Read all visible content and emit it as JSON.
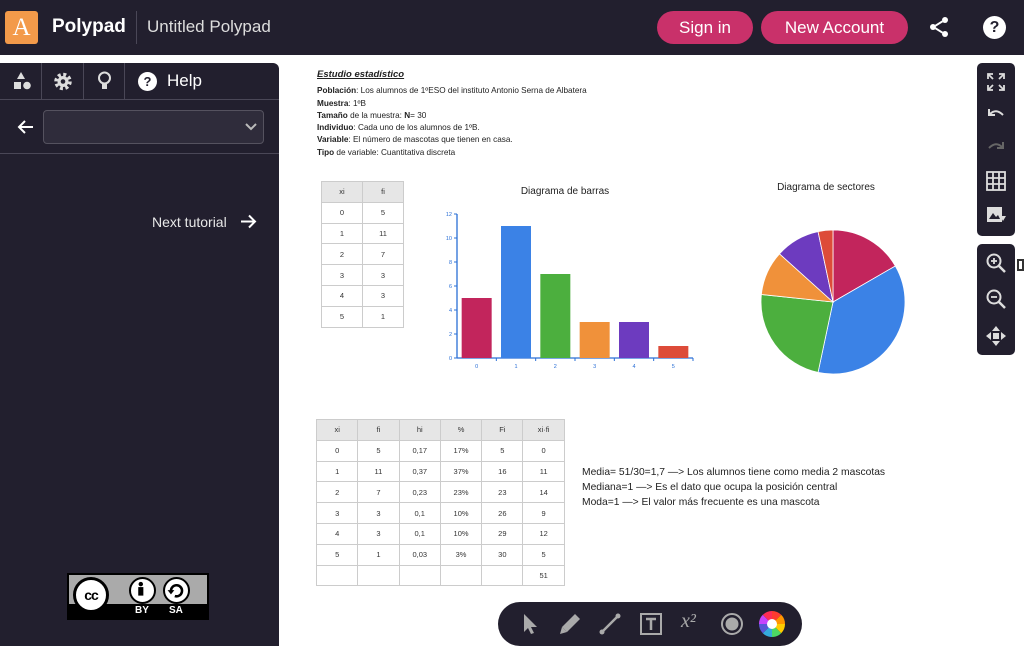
{
  "header": {
    "logo_letter": "A",
    "app_name": "Polypad",
    "file_title": "Untitled Polypad",
    "signin_label": "Sign in",
    "new_account_label": "New Account",
    "help_glyph": "?"
  },
  "sidebar": {
    "tabs": [
      "shapes-icon",
      "gear-icon",
      "lightbulb-icon"
    ],
    "help_glyph": "?",
    "help_label": "Help",
    "tutorial_select_value": "",
    "next_tutorial_label": "Next tutorial",
    "license": {
      "cc": "cc",
      "by": "BY",
      "sa": "SA"
    }
  },
  "document": {
    "title": "Estudio estadístico",
    "rows": [
      {
        "label": "Población",
        "text": ": Los alumnos de 1ºESO del instituto Antonio Serna de Albatera"
      },
      {
        "label": "Muestra",
        "text": ": 1ºB"
      },
      {
        "label": "Tamaño",
        "text": " de la muestra: ",
        "label2": "N",
        "text2": "= 30"
      },
      {
        "label": "Individuo",
        "text": ": Cada uno de los alumnos de 1ºB."
      },
      {
        "label": "Variable",
        "text": ": El número de mascotas que tienen en casa."
      },
      {
        "label": "Tipo",
        "text": " de variable: Cuantitativa discreta"
      }
    ]
  },
  "table1": {
    "headers": [
      "xi",
      "fi"
    ],
    "rows": [
      [
        "0",
        "5"
      ],
      [
        "1",
        "11"
      ],
      [
        "2",
        "7"
      ],
      [
        "3",
        "3"
      ],
      [
        "4",
        "3"
      ],
      [
        "5",
        "1"
      ]
    ]
  },
  "table2": {
    "headers": [
      "xi",
      "fi",
      "hi",
      "%",
      "Fi",
      "xi·fi"
    ],
    "rows": [
      [
        "0",
        "5",
        "0,17",
        "17%",
        "5",
        "0"
      ],
      [
        "1",
        "11",
        "0,37",
        "37%",
        "16",
        "11"
      ],
      [
        "2",
        "7",
        "0,23",
        "23%",
        "23",
        "14"
      ],
      [
        "3",
        "3",
        "0,1",
        "10%",
        "26",
        "9"
      ],
      [
        "4",
        "3",
        "0,1",
        "10%",
        "29",
        "12"
      ],
      [
        "5",
        "1",
        "0,03",
        "3%",
        "30",
        "5"
      ],
      [
        "",
        "",
        "",
        "",
        "",
        "51"
      ]
    ]
  },
  "chart_data": [
    {
      "type": "bar",
      "title": "Diagrama de barras",
      "categories": [
        "0",
        "1",
        "2",
        "3",
        "4",
        "5"
      ],
      "values": [
        5,
        11,
        7,
        3,
        3,
        1
      ],
      "colors": [
        "#c2255c",
        "#3b82e6",
        "#4caf3e",
        "#f0913a",
        "#6d3bbf",
        "#dd4b39"
      ],
      "ylim": [
        0,
        12
      ],
      "yticks": [
        0,
        2,
        4,
        6,
        8,
        10,
        12
      ],
      "axis_color": "#2a6fd6"
    },
    {
      "type": "pie",
      "title": "Diagrama de sectores",
      "categories": [
        "0",
        "1",
        "2",
        "3",
        "4",
        "5"
      ],
      "values": [
        5,
        11,
        7,
        3,
        3,
        1
      ],
      "colors": [
        "#c2255c",
        "#3b82e6",
        "#4caf3e",
        "#f0913a",
        "#6d3bbf",
        "#dd4b39"
      ]
    }
  ],
  "stats": [
    "Media= 51/30=1,7 —> Los alumnos tiene como media 2 mascotas",
    "Mediana=1 —> Es el dato que ocupa la posición central",
    "Moda=1 —> El valor más frecuente es una mascota"
  ],
  "right_toolbar": [
    "fullscreen-icon",
    "undo-icon",
    "redo-icon",
    "grid-icon",
    "image-download-icon",
    "zoom-in-icon",
    "zoom-out-icon",
    "pan-icon"
  ],
  "bottom_toolbar": {
    "tools": [
      "pointer-icon",
      "pen-icon",
      "line-icon",
      "text-icon",
      "equation-icon",
      "circle-icon",
      "color-wheel-icon"
    ],
    "equation_label": "x²"
  },
  "colors": {
    "header_bg": "#221f2e",
    "accent": "#c9316a",
    "logo_bg": "#f39a4a"
  }
}
